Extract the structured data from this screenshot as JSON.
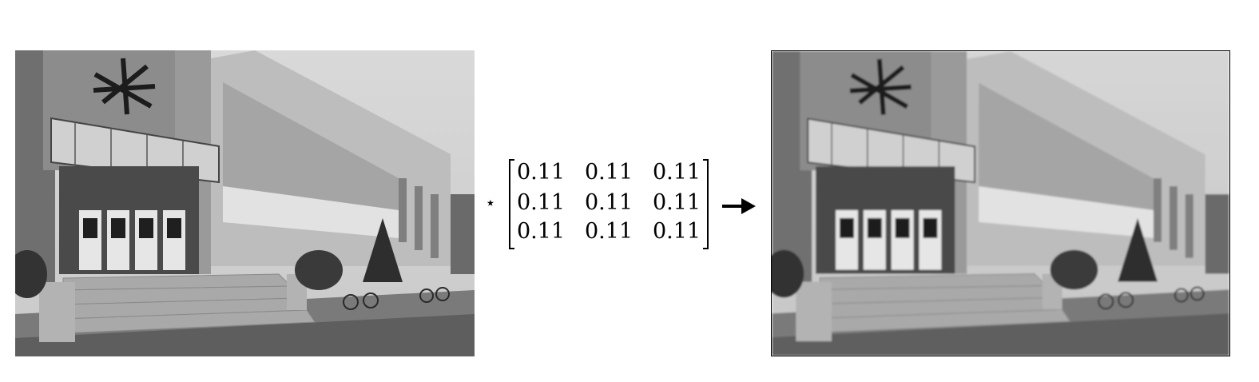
{
  "operator_symbol": "⋆",
  "kernel": {
    "rows": [
      [
        "0.11",
        "0.11",
        "0.11"
      ],
      [
        "0.11",
        "0.11",
        "0.11"
      ],
      [
        "0.11",
        "0.11",
        "0.11"
      ]
    ]
  },
  "images": {
    "input": "grayscale photo of a multi-storey building with glass entrance, steps and bicycles",
    "output": "same photo after 3x3 box blur (slightly blurred)"
  }
}
